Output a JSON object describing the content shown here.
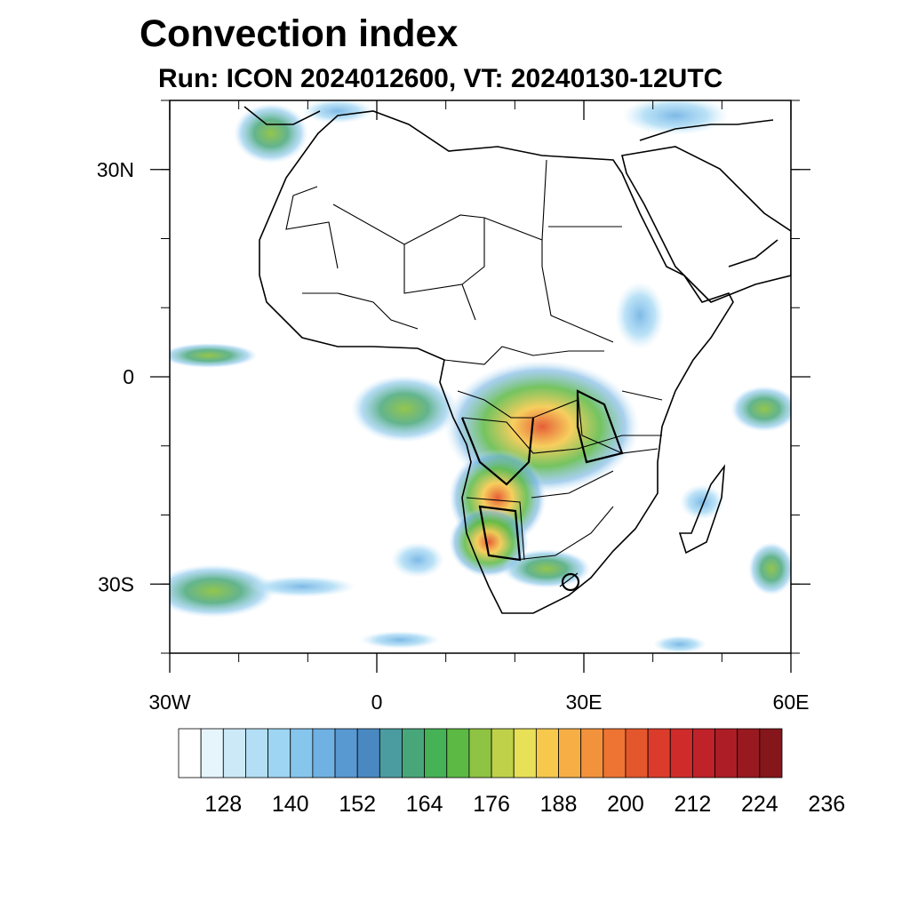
{
  "header": {
    "title": "Convection index",
    "subtitle": "Run: ICON 2024012600,  VT: 20240130-12UTC"
  },
  "map": {
    "lon_range": [
      -30,
      60
    ],
    "lat_range": [
      -40,
      40
    ],
    "lon_ticks": [
      {
        "lon": -30,
        "label": "30W"
      },
      {
        "lon": 0,
        "label": "0"
      },
      {
        "lon": 30,
        "label": "30E"
      },
      {
        "lon": 60,
        "label": "60E"
      }
    ],
    "lat_ticks": [
      {
        "lat": 30,
        "label": "30N"
      },
      {
        "lat": 0,
        "label": "0"
      },
      {
        "lat": -30,
        "label": "30S"
      }
    ]
  },
  "colorbar": {
    "colors": [
      "#ffffff",
      "#e6f4fc",
      "#cce9f8",
      "#b3def5",
      "#9dd5f3",
      "#86c5ec",
      "#6fb1e3",
      "#5999d2",
      "#4a88c2",
      "#4a9ca0",
      "#48a77a",
      "#46b256",
      "#5cb944",
      "#8fc343",
      "#bfd149",
      "#e8e057",
      "#f6c94c",
      "#f6ae45",
      "#f3923d",
      "#ed7433",
      "#e4562c",
      "#db3b2b",
      "#cf2b2b",
      "#bf2229",
      "#ac1d25",
      "#981a20",
      "#85161b"
    ],
    "label_values": [
      "128",
      "140",
      "152",
      "164",
      "176",
      "188",
      "200",
      "212",
      "224",
      "236"
    ]
  }
}
